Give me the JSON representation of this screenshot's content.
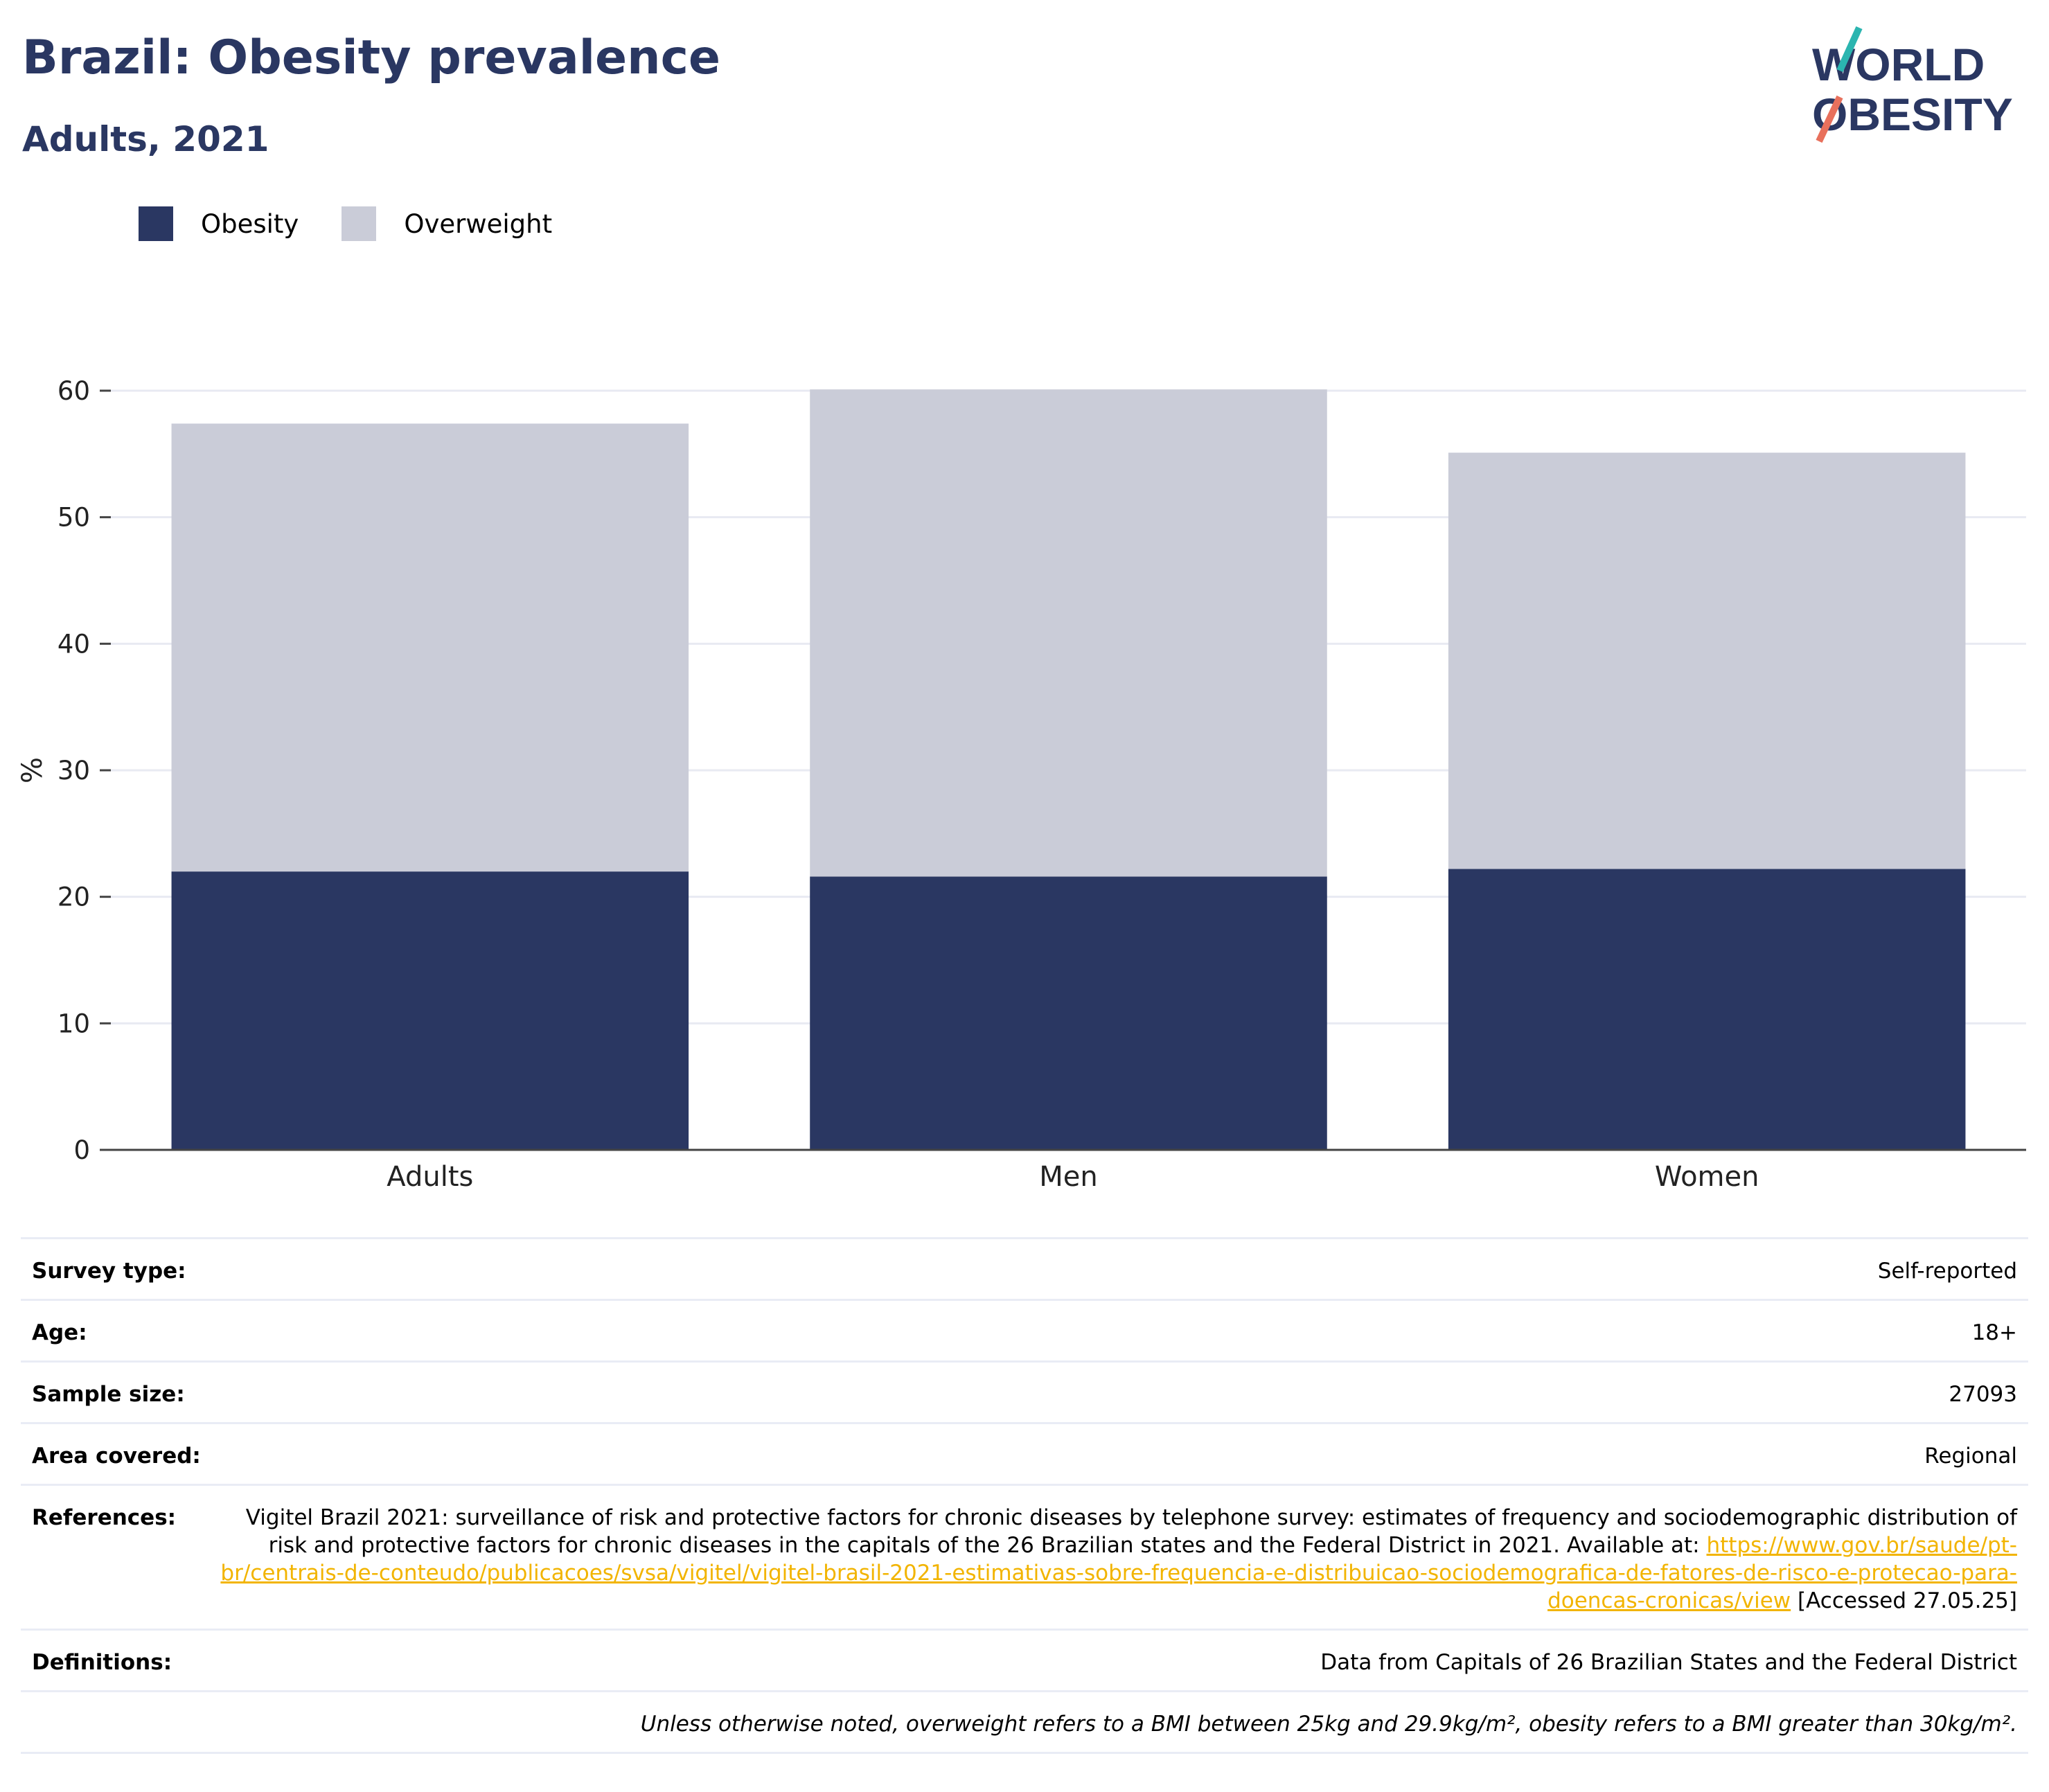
{
  "title": "Brazil: Obesity prevalence",
  "subtitle": "Adults, 2021",
  "logo": {
    "line1": "WORLD",
    "line2": "OBESITY"
  },
  "colors": {
    "obesity": "#2a3762",
    "overweight": "#caccd8",
    "accent_teal": "#2bb5b0",
    "accent_coral": "#e8705c",
    "link": "#f2b400"
  },
  "chart_data": {
    "type": "bar",
    "stacked": true,
    "categories": [
      "Adults",
      "Men",
      "Women"
    ],
    "series": [
      {
        "name": "Obesity",
        "values": [
          22.0,
          21.6,
          22.2
        ]
      },
      {
        "name": "Overweight",
        "values": [
          35.4,
          38.5,
          32.9
        ]
      }
    ],
    "ylabel": "%",
    "xlabel": "",
    "ylim": [
      0,
      60
    ],
    "yticks": [
      0,
      10,
      20,
      30,
      40,
      50,
      60
    ],
    "legend": "top-left",
    "grid": true
  },
  "metadata": {
    "survey_type": {
      "label": "Survey type:",
      "value": "Self-reported"
    },
    "age": {
      "label": "Age:",
      "value": "18+"
    },
    "sample_size": {
      "label": "Sample size:",
      "value": "27093"
    },
    "area_covered": {
      "label": "Area covered:",
      "value": "Regional"
    },
    "references": {
      "label": "References:",
      "text_before": "Vigitel Brazil 2021: surveillance of risk and protective factors for chronic diseases by telephone survey: estimates of frequency and sociodemographic distribution of risk and protective factors for chronic diseases in the capitals of the 26 Brazilian states and the Federal District in 2021. Available at: ",
      "link": "https://www.gov.br/saude/pt-br/centrais-de-conteudo/publicacoes/svsa/vigitel/vigitel-brasil-2021-estimativas-sobre-frequencia-e-distribuicao-sociodemografica-de-fatores-de-risco-e-protecao-para-doencas-cronicas/view",
      "text_after": " [Accessed 27.05.25]"
    },
    "definitions": {
      "label": "Definitions:",
      "value": "Data from Capitals of 26 Brazilian States and the Federal District"
    },
    "note": "Unless otherwise noted, overweight refers to a BMI between 25kg and 29.9kg/m², obesity refers to a BMI greater than 30kg/m²."
  }
}
